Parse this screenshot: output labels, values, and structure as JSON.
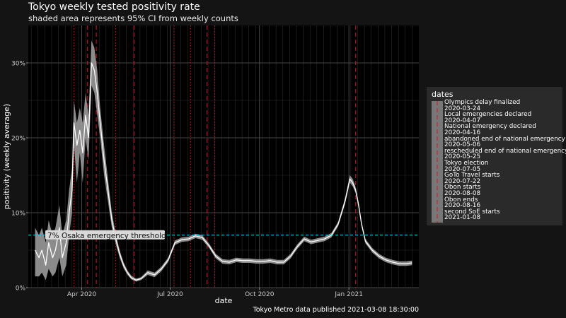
{
  "title": "Tokyo weekly tested positivity rate",
  "subtitle": "shaded area represents 95% CI from weekly counts",
  "caption": "Tokyo Metro data published 2021-03-08 18:30:00",
  "colors": {
    "background": "#141414",
    "panel": "#000000",
    "line": "#ffffff",
    "ribbon": "#9a9a9a",
    "threshold": "#00e5e5",
    "event": "#e0102a",
    "grid_major": "#5a5a5a",
    "grid_minor": "#2b2b2b"
  },
  "legend": {
    "title": "dates",
    "entries": [
      "Olympics delay finalized",
      "2020-03-24",
      "Local emergencies declared",
      "2020-04-07",
      "National emergency declared",
      "2020-04-16",
      "abandoned end of national emergency",
      "2020-05-06",
      "rescheduled end of national emergency",
      "2020-05-25",
      "Tokyo election",
      "2020-07-05",
      "GoTo Travel starts",
      "2020-07-22",
      "Obon starts",
      "2020-08-08",
      "Obon ends",
      "2020-08-16",
      "second SoE starts",
      "2021-01-08"
    ]
  },
  "chart_data": {
    "type": "line",
    "title": "Tokyo weekly tested positivity rate",
    "subtitle": "shaded area represents 95% CI from weekly counts",
    "xlabel": "date",
    "ylabel": "positivity (weekly average)",
    "xlim": [
      "2020-02-06",
      "2021-03-14"
    ],
    "ylim": [
      0,
      35
    ],
    "x_ticks": [
      {
        "date": "2020-04-01",
        "label": "Apr 2020"
      },
      {
        "date": "2020-07-01",
        "label": "Jul 2020"
      },
      {
        "date": "2020-10-01",
        "label": "Oct 2020"
      },
      {
        "date": "2021-01-01",
        "label": "Jan 2021"
      }
    ],
    "y_ticks": [
      {
        "value": 0,
        "label": "0%"
      },
      {
        "value": 10,
        "label": "10%"
      },
      {
        "value": 20,
        "label": "20%"
      },
      {
        "value": 30,
        "label": "30%"
      }
    ],
    "threshold": {
      "value": 7,
      "label": "7% Osaka emergency threshold"
    },
    "events": [
      {
        "date": "2020-03-24",
        "label": "Olympics delay finalized",
        "style": "dotted"
      },
      {
        "date": "2020-04-07",
        "label": "Local emergencies declared",
        "style": "dashed"
      },
      {
        "date": "2020-04-16",
        "label": "National emergency declared",
        "style": "dashed"
      },
      {
        "date": "2020-05-06",
        "label": "abandoned end of national emergency",
        "style": "dotted"
      },
      {
        "date": "2020-05-25",
        "label": "rescheduled end of national emergency",
        "style": "dashed"
      },
      {
        "date": "2020-07-05",
        "label": "Tokyo election",
        "style": "dotted"
      },
      {
        "date": "2020-07-22",
        "label": "GoTo Travel starts",
        "style": "dotted"
      },
      {
        "date": "2020-08-08",
        "label": "Obon starts",
        "style": "dashed"
      },
      {
        "date": "2020-08-16",
        "label": "Obon ends",
        "style": "dotted"
      },
      {
        "date": "2021-01-08",
        "label": "second SoE starts",
        "style": "dashed"
      }
    ],
    "series": [
      {
        "x": [
          "2020-02-13",
          "2020-02-17",
          "2020-02-20",
          "2020-02-24",
          "2020-02-27",
          "2020-03-02",
          "2020-03-05",
          "2020-03-09",
          "2020-03-12",
          "2020-03-16",
          "2020-03-19",
          "2020-03-22",
          "2020-03-24",
          "2020-03-27",
          "2020-03-30",
          "2020-04-02",
          "2020-04-05",
          "2020-04-08",
          "2020-04-11",
          "2020-04-14",
          "2020-04-17",
          "2020-04-20",
          "2020-04-24",
          "2020-04-28",
          "2020-05-02",
          "2020-05-06",
          "2020-05-10",
          "2020-05-14",
          "2020-05-18",
          "2020-05-22",
          "2020-05-27",
          "2020-06-01",
          "2020-06-08",
          "2020-06-15",
          "2020-06-22",
          "2020-06-29",
          "2020-07-06",
          "2020-07-13",
          "2020-07-20",
          "2020-07-27",
          "2020-08-03",
          "2020-08-10",
          "2020-08-17",
          "2020-08-24",
          "2020-08-31",
          "2020-09-07",
          "2020-09-14",
          "2020-09-21",
          "2020-09-28",
          "2020-10-05",
          "2020-10-12",
          "2020-10-19",
          "2020-10-26",
          "2020-11-02",
          "2020-11-09",
          "2020-11-16",
          "2020-11-23",
          "2020-11-30",
          "2020-12-07",
          "2020-12-14",
          "2020-12-21",
          "2020-12-28",
          "2021-01-02",
          "2021-01-05",
          "2021-01-08",
          "2021-01-11",
          "2021-01-14",
          "2021-01-18",
          "2021-01-25",
          "2021-02-01",
          "2021-02-08",
          "2021-02-15",
          "2021-02-22",
          "2021-03-01",
          "2021-03-07"
        ],
        "y": [
          5,
          4,
          5,
          3,
          6,
          4,
          5,
          8,
          4,
          6,
          10,
          13,
          22,
          19,
          21,
          18,
          23,
          20,
          30,
          29,
          26,
          22,
          17,
          13,
          9,
          6.5,
          4.5,
          3,
          2,
          1.3,
          1,
          1.2,
          2,
          1.7,
          2.5,
          3.7,
          6,
          6.4,
          6.5,
          6.9,
          6.7,
          5.6,
          4.2,
          3.5,
          3.4,
          3.7,
          3.6,
          3.6,
          3.5,
          3.5,
          3.6,
          3.4,
          3.4,
          4.2,
          5.5,
          6.5,
          6.1,
          6.3,
          6.5,
          7,
          8.5,
          11.5,
          14.5,
          14,
          13,
          11,
          8.5,
          6.2,
          5,
          4.2,
          3.7,
          3.4,
          3.2,
          3.2,
          3.3
        ],
        "ci_lower": [
          1.5,
          1.5,
          2,
          1,
          2.5,
          1.5,
          2,
          4,
          1.5,
          3,
          7,
          10,
          19,
          14,
          18,
          14,
          20,
          17,
          27,
          26,
          23,
          20,
          15,
          11.5,
          8,
          5.8,
          4,
          2.6,
          1.7,
          1.1,
          0.8,
          1,
          1.7,
          1.4,
          2.2,
          3.4,
          5.7,
          6.1,
          6.2,
          6.6,
          6.4,
          5.3,
          3.9,
          3.2,
          3.1,
          3.4,
          3.3,
          3.3,
          3.2,
          3.2,
          3.3,
          3.1,
          3.1,
          3.9,
          5.2,
          6.2,
          5.8,
          6,
          6.2,
          6.7,
          8.2,
          11.1,
          14,
          13.5,
          12.6,
          10.6,
          8.2,
          5.9,
          4.7,
          3.9,
          3.4,
          3.1,
          2.9,
          2.9,
          3
        ],
        "ci_upper": [
          8,
          7,
          8,
          6,
          9,
          7,
          8,
          11,
          7,
          9,
          13,
          16,
          25,
          22,
          24,
          22,
          26,
          23,
          33,
          32,
          29,
          24,
          19,
          14.5,
          10,
          7.2,
          5,
          3.4,
          2.3,
          1.6,
          1.2,
          1.4,
          2.3,
          2,
          2.8,
          4,
          6.3,
          6.7,
          6.8,
          7.2,
          7,
          5.9,
          4.5,
          3.8,
          3.7,
          4,
          3.9,
          3.9,
          3.8,
          3.8,
          3.9,
          3.7,
          3.7,
          4.5,
          5.8,
          6.8,
          6.4,
          6.6,
          6.8,
          7.3,
          8.8,
          11.9,
          15,
          14.5,
          13.4,
          11.4,
          8.8,
          6.5,
          5.3,
          4.5,
          4,
          3.7,
          3.5,
          3.5,
          3.6
        ]
      }
    ],
    "legend_position": "right"
  }
}
